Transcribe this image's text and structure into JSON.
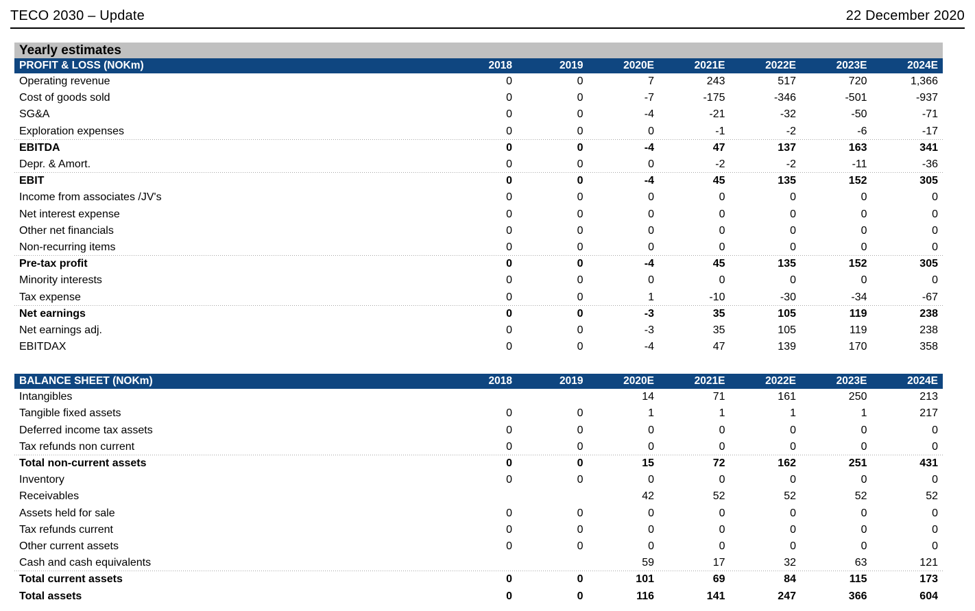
{
  "header": {
    "title": "TECO 2030 – Update",
    "date": "22 December 2020"
  },
  "section_title": "Yearly estimates",
  "columns": [
    "2018",
    "2019",
    "2020E",
    "2021E",
    "2022E",
    "2023E",
    "2024E"
  ],
  "colors": {
    "table_header_bar": "#0F4680",
    "section_bar": "#C0C0C0",
    "separator_dots": "#A3A3A3"
  },
  "tables": [
    {
      "name": "PROFIT & LOSS (NOKm)",
      "rows": [
        {
          "label": "Operating revenue",
          "values": [
            "0",
            "0",
            "7",
            "243",
            "517",
            "720",
            "1,366"
          ],
          "bold": false,
          "sep": false
        },
        {
          "label": "Cost of goods sold",
          "values": [
            "0",
            "0",
            "-7",
            "-175",
            "-346",
            "-501",
            "-937"
          ],
          "bold": false,
          "sep": false
        },
        {
          "label": "SG&A",
          "values": [
            "0",
            "0",
            "-4",
            "-21",
            "-32",
            "-50",
            "-71"
          ],
          "bold": false,
          "sep": false
        },
        {
          "label": "Exploration expenses",
          "values": [
            "0",
            "0",
            "0",
            "-1",
            "-2",
            "-6",
            "-17"
          ],
          "bold": false,
          "sep": false
        },
        {
          "label": "EBITDA",
          "values": [
            "0",
            "0",
            "-4",
            "47",
            "137",
            "163",
            "341"
          ],
          "bold": true,
          "sep": true
        },
        {
          "label": "Depr. & Amort.",
          "values": [
            "0",
            "0",
            "0",
            "-2",
            "-2",
            "-11",
            "-36"
          ],
          "bold": false,
          "sep": false
        },
        {
          "label": "EBIT",
          "values": [
            "0",
            "0",
            "-4",
            "45",
            "135",
            "152",
            "305"
          ],
          "bold": true,
          "sep": true
        },
        {
          "label": "Income from associates /JV's",
          "values": [
            "0",
            "0",
            "0",
            "0",
            "0",
            "0",
            "0"
          ],
          "bold": false,
          "sep": false
        },
        {
          "label": "Net interest expense",
          "values": [
            "0",
            "0",
            "0",
            "0",
            "0",
            "0",
            "0"
          ],
          "bold": false,
          "sep": false
        },
        {
          "label": "Other net financials",
          "values": [
            "0",
            "0",
            "0",
            "0",
            "0",
            "0",
            "0"
          ],
          "bold": false,
          "sep": false
        },
        {
          "label": "Non-recurring items",
          "values": [
            "0",
            "0",
            "0",
            "0",
            "0",
            "0",
            "0"
          ],
          "bold": false,
          "sep": false
        },
        {
          "label": "Pre-tax profit",
          "values": [
            "0",
            "0",
            "-4",
            "45",
            "135",
            "152",
            "305"
          ],
          "bold": true,
          "sep": true
        },
        {
          "label": "Minority interests",
          "values": [
            "0",
            "0",
            "0",
            "0",
            "0",
            "0",
            "0"
          ],
          "bold": false,
          "sep": false
        },
        {
          "label": "Tax expense",
          "values": [
            "0",
            "0",
            "1",
            "-10",
            "-30",
            "-34",
            "-67"
          ],
          "bold": false,
          "sep": false
        },
        {
          "label": "Net earnings",
          "values": [
            "0",
            "0",
            "-3",
            "35",
            "105",
            "119",
            "238"
          ],
          "bold": true,
          "sep": true
        },
        {
          "label": "Net earnings adj.",
          "values": [
            "0",
            "0",
            "-3",
            "35",
            "105",
            "119",
            "238"
          ],
          "bold": false,
          "sep": false
        },
        {
          "label": "EBITDAX",
          "values": [
            "0",
            "0",
            "-4",
            "47",
            "139",
            "170",
            "358"
          ],
          "bold": false,
          "sep": false
        }
      ]
    },
    {
      "name": "BALANCE SHEET (NOKm)",
      "rows": [
        {
          "label": "Intangibles",
          "values": [
            "",
            "",
            "14",
            "71",
            "161",
            "250",
            "213"
          ],
          "bold": false,
          "sep": false
        },
        {
          "label": "Tangible fixed assets",
          "values": [
            "0",
            "0",
            "1",
            "1",
            "1",
            "1",
            "217"
          ],
          "bold": false,
          "sep": false
        },
        {
          "label": "Deferred income tax assets",
          "values": [
            "0",
            "0",
            "0",
            "0",
            "0",
            "0",
            "0"
          ],
          "bold": false,
          "sep": false
        },
        {
          "label": "Tax refunds non current",
          "values": [
            "0",
            "0",
            "0",
            "0",
            "0",
            "0",
            "0"
          ],
          "bold": false,
          "sep": false
        },
        {
          "label": "Total non-current assets",
          "values": [
            "0",
            "0",
            "15",
            "72",
            "162",
            "251",
            "431"
          ],
          "bold": true,
          "sep": true
        },
        {
          "label": "Inventory",
          "values": [
            "0",
            "0",
            "0",
            "0",
            "0",
            "0",
            "0"
          ],
          "bold": false,
          "sep": false
        },
        {
          "label": "Receivables",
          "values": [
            "",
            "",
            "42",
            "52",
            "52",
            "52",
            "52"
          ],
          "bold": false,
          "sep": false
        },
        {
          "label": "Assets held for sale",
          "values": [
            "0",
            "0",
            "0",
            "0",
            "0",
            "0",
            "0"
          ],
          "bold": false,
          "sep": false
        },
        {
          "label": "Tax refunds current",
          "values": [
            "0",
            "0",
            "0",
            "0",
            "0",
            "0",
            "0"
          ],
          "bold": false,
          "sep": false
        },
        {
          "label": "Other current assets",
          "values": [
            "0",
            "0",
            "0",
            "0",
            "0",
            "0",
            "0"
          ],
          "bold": false,
          "sep": false
        },
        {
          "label": "Cash and cash equivalents",
          "values": [
            "",
            "",
            "59",
            "17",
            "32",
            "63",
            "121"
          ],
          "bold": false,
          "sep": false
        },
        {
          "label": "Total current assets",
          "values": [
            "0",
            "0",
            "101",
            "69",
            "84",
            "115",
            "173"
          ],
          "bold": true,
          "sep": true
        },
        {
          "label": "Total assets",
          "values": [
            "0",
            "0",
            "116",
            "141",
            "247",
            "366",
            "604"
          ],
          "bold": true,
          "sep": false
        }
      ]
    }
  ]
}
